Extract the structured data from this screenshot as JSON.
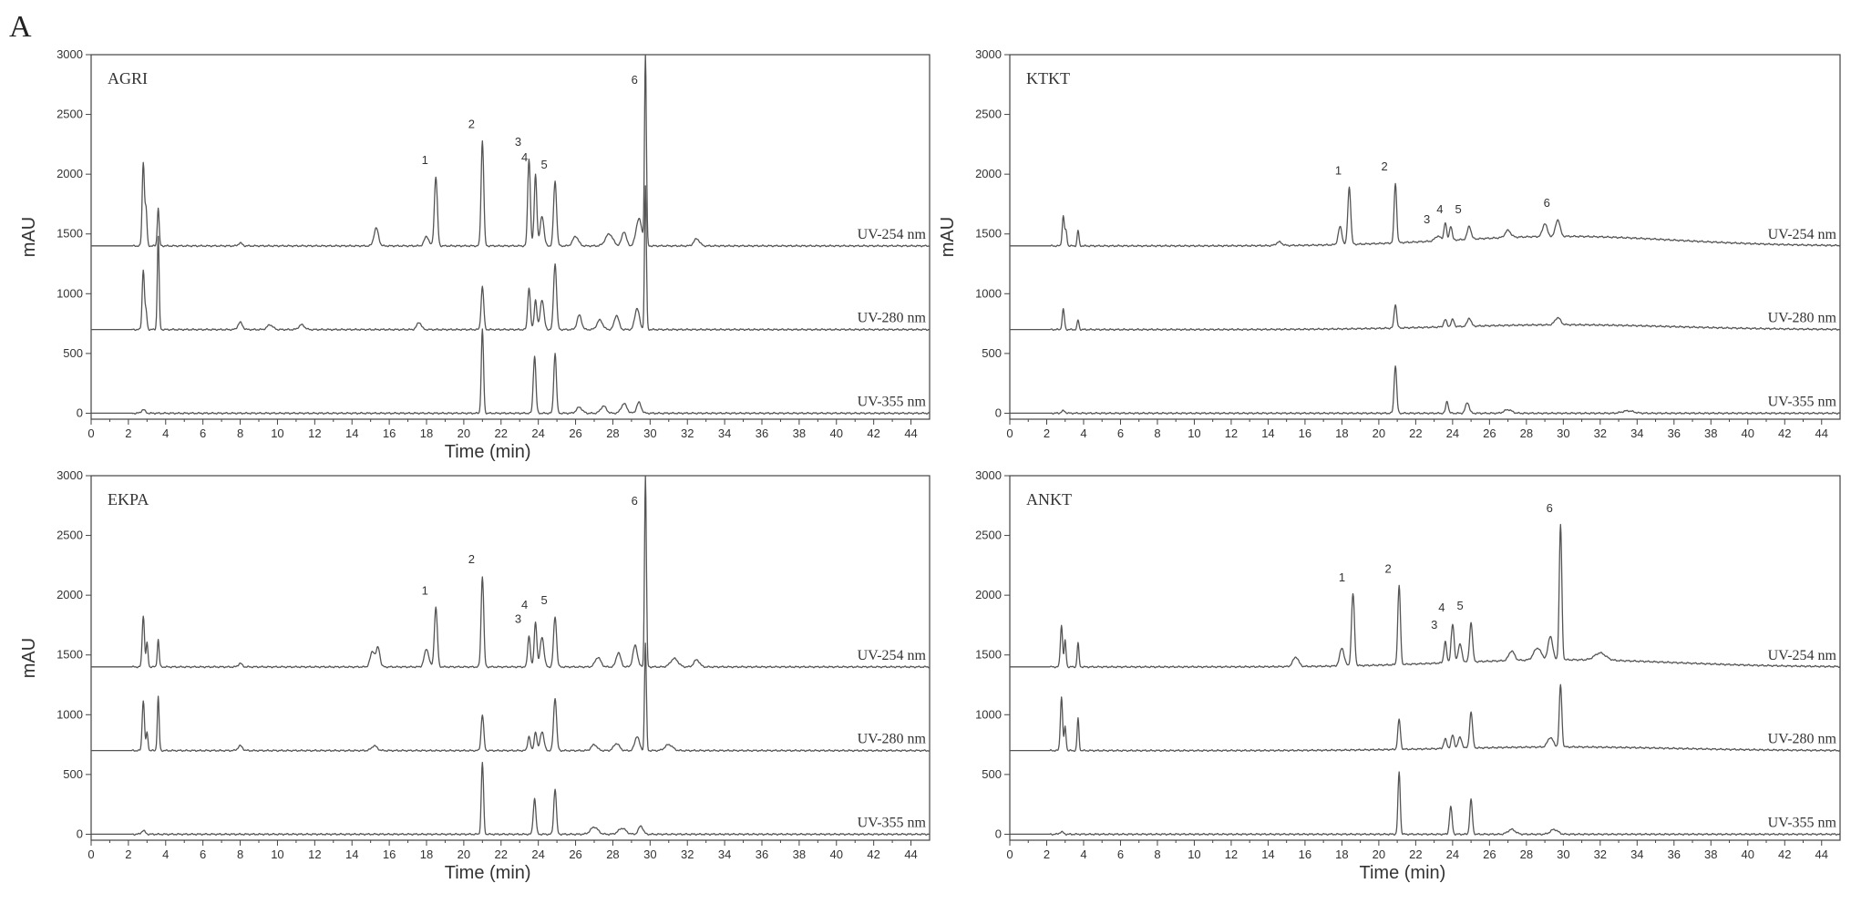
{
  "figure_label": "A",
  "colors": {
    "trace": "#555555",
    "axis": "#444444",
    "text": "#333333"
  },
  "chart_data": [
    {
      "type": "line",
      "title": "AGRI",
      "xlabel": "Time (min)",
      "ylabel": "mAU",
      "xlim": [
        0,
        45
      ],
      "ylim": [
        -50,
        3000
      ],
      "x_ticks": [
        0,
        2,
        4,
        6,
        8,
        10,
        12,
        14,
        16,
        18,
        20,
        22,
        24,
        26,
        28,
        30,
        32,
        34,
        36,
        38,
        40,
        42,
        44
      ],
      "y_ticks": [
        0,
        500,
        1000,
        1500,
        2000,
        2500,
        3000
      ],
      "grid": false,
      "series": [
        {
          "name": "UV-254 nm",
          "baseline": 1400,
          "baseline_bump": [],
          "peaks": [
            [
              2.8,
              700,
              0.06
            ],
            [
              2.95,
              300,
              0.05
            ],
            [
              3.6,
              320,
              0.05
            ],
            [
              8,
              25,
              0.1
            ],
            [
              15.3,
              150,
              0.12
            ],
            [
              18,
              80,
              0.12
            ],
            [
              18.5,
              580,
              0.08
            ],
            [
              21,
              880,
              0.07
            ],
            [
              23.5,
              730,
              0.07
            ],
            [
              23.85,
              600,
              0.07
            ],
            [
              24.2,
              250,
              0.1
            ],
            [
              24.9,
              540,
              0.08
            ],
            [
              26,
              80,
              0.15
            ],
            [
              27.8,
              100,
              0.2
            ],
            [
              28.6,
              120,
              0.12
            ],
            [
              29.4,
              230,
              0.15
            ],
            [
              29.75,
              1600,
              0.05
            ],
            [
              32.5,
              60,
              0.15
            ]
          ],
          "peak_labels": [
            [
              18.5,
              "1"
            ],
            [
              21,
              "2"
            ],
            [
              23.5,
              "3"
            ],
            [
              23.85,
              "4"
            ],
            [
              24.9,
              "5"
            ],
            [
              29.75,
              "6"
            ]
          ]
        },
        {
          "name": "UV-280 nm",
          "baseline": 700,
          "baseline_bump": [],
          "peaks": [
            [
              2.8,
              500,
              0.06
            ],
            [
              2.95,
              150,
              0.05
            ],
            [
              3.6,
              780,
              0.05
            ],
            [
              8,
              60,
              0.12
            ],
            [
              9.6,
              40,
              0.15
            ],
            [
              11.3,
              40,
              0.15
            ],
            [
              17.6,
              60,
              0.12
            ],
            [
              21,
              360,
              0.07
            ],
            [
              23.5,
              350,
              0.07
            ],
            [
              23.85,
              250,
              0.07
            ],
            [
              24.2,
              250,
              0.1
            ],
            [
              24.9,
              550,
              0.08
            ],
            [
              26.2,
              120,
              0.12
            ],
            [
              27.3,
              80,
              0.15
            ],
            [
              28.2,
              120,
              0.12
            ],
            [
              29.3,
              180,
              0.12
            ],
            [
              29.75,
              1200,
              0.05
            ]
          ],
          "peak_labels": []
        },
        {
          "name": "UV-355 nm",
          "baseline": 0,
          "baseline_bump": [],
          "peaks": [
            [
              2.8,
              30,
              0.1
            ],
            [
              21,
              700,
              0.06
            ],
            [
              23.8,
              480,
              0.07
            ],
            [
              24.9,
              500,
              0.07
            ],
            [
              26.2,
              50,
              0.15
            ],
            [
              27.5,
              60,
              0.15
            ],
            [
              28.6,
              80,
              0.15
            ],
            [
              29.4,
              90,
              0.12
            ]
          ],
          "peak_labels": []
        }
      ]
    },
    {
      "type": "line",
      "title": "KTKT",
      "xlabel": "",
      "ylabel": "mAU",
      "xlim": [
        0,
        45
      ],
      "ylim": [
        -50,
        3000
      ],
      "x_ticks": [
        0,
        2,
        4,
        6,
        8,
        10,
        12,
        14,
        16,
        18,
        20,
        22,
        24,
        26,
        28,
        30,
        32,
        34,
        36,
        38,
        40,
        42,
        44
      ],
      "y_ticks": [
        0,
        500,
        1000,
        1500,
        2000,
        2500,
        3000
      ],
      "grid": false,
      "series": [
        {
          "name": "UV-254 nm",
          "baseline": 1400,
          "baseline_bump": [
            30,
            80,
            6
          ],
          "peaks": [
            [
              2.9,
              250,
              0.06
            ],
            [
              3.05,
              120,
              0.05
            ],
            [
              3.7,
              130,
              0.05
            ],
            [
              14.6,
              30,
              0.15
            ],
            [
              17.9,
              150,
              0.1
            ],
            [
              18.4,
              480,
              0.08
            ],
            [
              20.9,
              500,
              0.07
            ],
            [
              23.2,
              40,
              0.15
            ],
            [
              23.6,
              150,
              0.07
            ],
            [
              23.9,
              120,
              0.07
            ],
            [
              24.9,
              110,
              0.1
            ],
            [
              27,
              60,
              0.15
            ],
            [
              29,
              110,
              0.12
            ],
            [
              29.7,
              140,
              0.12
            ]
          ],
          "peak_labels": [
            [
              18.4,
              "1"
            ],
            [
              20.9,
              "2"
            ],
            [
              23.2,
              "3"
            ],
            [
              23.9,
              "4"
            ],
            [
              24.9,
              "5"
            ],
            [
              29.7,
              "6"
            ]
          ]
        },
        {
          "name": "UV-280 nm",
          "baseline": 700,
          "baseline_bump": [
            30,
            40,
            6
          ],
          "peaks": [
            [
              2.9,
              170,
              0.06
            ],
            [
              3.7,
              80,
              0.05
            ],
            [
              20.9,
              200,
              0.07
            ],
            [
              23.6,
              60,
              0.08
            ],
            [
              24,
              60,
              0.08
            ],
            [
              24.9,
              70,
              0.1
            ],
            [
              29.7,
              60,
              0.15
            ]
          ],
          "peak_labels": []
        },
        {
          "name": "UV-355 nm",
          "baseline": 0,
          "baseline_bump": [],
          "peaks": [
            [
              2.9,
              20,
              0.1
            ],
            [
              20.9,
              400,
              0.07
            ],
            [
              23.7,
              100,
              0.07
            ],
            [
              24.8,
              90,
              0.1
            ],
            [
              27,
              30,
              0.2
            ],
            [
              33.5,
              20,
              0.3
            ]
          ],
          "peak_labels": []
        }
      ]
    },
    {
      "type": "line",
      "title": "EKPA",
      "xlabel": "Time (min)",
      "ylabel": "mAU",
      "xlim": [
        0,
        45
      ],
      "ylim": [
        -50,
        3000
      ],
      "x_ticks": [
        0,
        2,
        4,
        6,
        8,
        10,
        12,
        14,
        16,
        18,
        20,
        22,
        24,
        26,
        28,
        30,
        32,
        34,
        36,
        38,
        40,
        42,
        44
      ],
      "y_ticks": [
        0,
        500,
        1000,
        1500,
        2000,
        2500,
        3000
      ],
      "grid": false,
      "series": [
        {
          "name": "UV-254 nm",
          "baseline": 1400,
          "baseline_bump": [],
          "peaks": [
            [
              2.8,
              430,
              0.06
            ],
            [
              3.0,
              200,
              0.05
            ],
            [
              3.6,
              230,
              0.05
            ],
            [
              8,
              30,
              0.1
            ],
            [
              15.1,
              130,
              0.12
            ],
            [
              15.4,
              160,
              0.1
            ],
            [
              18,
              150,
              0.12
            ],
            [
              18.5,
              500,
              0.08
            ],
            [
              21,
              760,
              0.07
            ],
            [
              23.5,
              260,
              0.07
            ],
            [
              23.85,
              380,
              0.07
            ],
            [
              24.2,
              250,
              0.1
            ],
            [
              24.9,
              420,
              0.08
            ],
            [
              27.2,
              80,
              0.15
            ],
            [
              28.3,
              120,
              0.12
            ],
            [
              29.2,
              180,
              0.12
            ],
            [
              29.75,
              1600,
              0.05
            ],
            [
              31.3,
              70,
              0.2
            ],
            [
              32.5,
              60,
              0.15
            ]
          ],
          "peak_labels": [
            [
              18.5,
              "1"
            ],
            [
              21,
              "2"
            ],
            [
              23.5,
              "3"
            ],
            [
              23.85,
              "4"
            ],
            [
              24.9,
              "5"
            ],
            [
              29.75,
              "6"
            ]
          ]
        },
        {
          "name": "UV-280 nm",
          "baseline": 700,
          "baseline_bump": [],
          "peaks": [
            [
              2.8,
              420,
              0.06
            ],
            [
              3.0,
              150,
              0.05
            ],
            [
              3.6,
              450,
              0.05
            ],
            [
              8,
              40,
              0.12
            ],
            [
              15.2,
              40,
              0.15
            ],
            [
              21,
              300,
              0.07
            ],
            [
              23.5,
              120,
              0.07
            ],
            [
              23.85,
              160,
              0.07
            ],
            [
              24.2,
              160,
              0.1
            ],
            [
              24.9,
              440,
              0.08
            ],
            [
              27,
              50,
              0.15
            ],
            [
              28.2,
              60,
              0.15
            ],
            [
              29.3,
              120,
              0.12
            ],
            [
              29.75,
              900,
              0.05
            ],
            [
              31,
              50,
              0.2
            ]
          ],
          "peak_labels": []
        },
        {
          "name": "UV-355 nm",
          "baseline": 0,
          "baseline_bump": [],
          "peaks": [
            [
              2.8,
              30,
              0.1
            ],
            [
              21,
              600,
              0.06
            ],
            [
              23.8,
              300,
              0.07
            ],
            [
              24.9,
              380,
              0.07
            ],
            [
              27,
              60,
              0.2
            ],
            [
              28.5,
              50,
              0.2
            ],
            [
              29.5,
              70,
              0.12
            ]
          ],
          "peak_labels": []
        }
      ]
    },
    {
      "type": "line",
      "title": "ANKT",
      "xlabel": "Time (min)",
      "ylabel": "",
      "xlim": [
        0,
        45
      ],
      "ylim": [
        -50,
        3000
      ],
      "x_ticks": [
        0,
        2,
        4,
        6,
        8,
        10,
        12,
        14,
        16,
        18,
        20,
        22,
        24,
        26,
        28,
        30,
        32,
        34,
        36,
        38,
        40,
        42,
        44
      ],
      "y_ticks": [
        0,
        500,
        1000,
        1500,
        2000,
        2500,
        3000
      ],
      "grid": false,
      "series": [
        {
          "name": "UV-254 nm",
          "baseline": 1400,
          "baseline_bump": [
            30,
            60,
            6
          ],
          "peaks": [
            [
              2.8,
              350,
              0.06
            ],
            [
              3.0,
              220,
              0.05
            ],
            [
              3.7,
              200,
              0.05
            ],
            [
              15.5,
              80,
              0.15
            ],
            [
              18,
              150,
              0.12
            ],
            [
              18.6,
              600,
              0.08
            ],
            [
              21.1,
              660,
              0.07
            ],
            [
              23.6,
              180,
              0.07
            ],
            [
              24,
              320,
              0.08
            ],
            [
              24.4,
              150,
              0.1
            ],
            [
              25,
              330,
              0.08
            ],
            [
              27.2,
              80,
              0.15
            ],
            [
              28.6,
              100,
              0.2
            ],
            [
              29.3,
              200,
              0.12
            ],
            [
              29.85,
              1130,
              0.07
            ],
            [
              32,
              60,
              0.3
            ]
          ],
          "peak_labels": [
            [
              18.6,
              "1"
            ],
            [
              21.1,
              "2"
            ],
            [
              23.6,
              "3"
            ],
            [
              24,
              "4"
            ],
            [
              25,
              "5"
            ],
            [
              29.85,
              "6"
            ]
          ]
        },
        {
          "name": "UV-280 nm",
          "baseline": 700,
          "baseline_bump": [
            30,
            30,
            6
          ],
          "peaks": [
            [
              2.8,
              450,
              0.06
            ],
            [
              3.0,
              200,
              0.05
            ],
            [
              3.7,
              270,
              0.05
            ],
            [
              21.1,
              250,
              0.07
            ],
            [
              23.6,
              80,
              0.08
            ],
            [
              24,
              110,
              0.08
            ],
            [
              24.4,
              90,
              0.1
            ],
            [
              25,
              300,
              0.08
            ],
            [
              29.3,
              80,
              0.15
            ],
            [
              29.85,
              520,
              0.07
            ]
          ],
          "peak_labels": []
        },
        {
          "name": "UV-355 nm",
          "baseline": 0,
          "baseline_bump": [],
          "peaks": [
            [
              2.8,
              20,
              0.1
            ],
            [
              21.1,
              520,
              0.06
            ],
            [
              23.9,
              230,
              0.07
            ],
            [
              25,
              290,
              0.07
            ],
            [
              27.2,
              40,
              0.2
            ],
            [
              29.5,
              40,
              0.2
            ]
          ],
          "peak_labels": []
        }
      ]
    }
  ]
}
